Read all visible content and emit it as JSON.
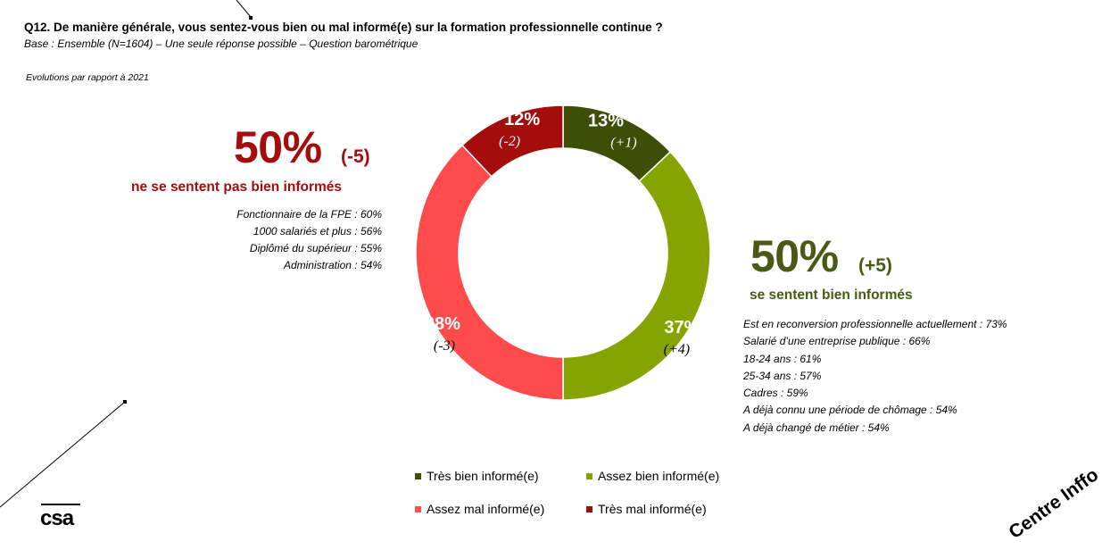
{
  "header": {
    "question": "Q12. De manière générale, vous sentez-vous bien ou mal informé(e) sur la formation professionnelle continue ?",
    "base": "Base : Ensemble (N=1604) – Une seule réponse possible – Question barométrique",
    "evolutions_note": "Evolutions par rapport à 2021"
  },
  "summary_negative": {
    "percent": "50%",
    "delta": "(-5)",
    "label": "ne se sentent pas bien informés",
    "details": [
      "Fonctionnaire de la FPE : 60%",
      "1000 salariés et plus : 56%",
      "Diplômé du supérieur : 55%",
      "Administration : 54%"
    ],
    "color": "#a50d0d"
  },
  "summary_positive": {
    "percent": "50%",
    "delta": "(+5)",
    "label": "se sentent bien informés",
    "details": [
      "Est en reconversion professionnelle actuellement : 73%",
      "Salarié d’une entreprise publique : 66%",
      "18-24 ans : 61%",
      "25-34 ans : 57%",
      "Cadres : 59%",
      "A déjà connu une période de chômage : 54%",
      "A déjà changé de métier : 54%"
    ],
    "color": "#4a5a14"
  },
  "chart_data": {
    "type": "pie",
    "variant": "donut",
    "title": "",
    "slices": [
      {
        "name": "Très bien informé(e)",
        "value": 13,
        "label": "13%",
        "delta": "(+1)",
        "color": "#3f4d06"
      },
      {
        "name": "Assez bien informé(e)",
        "value": 37,
        "label": "37%",
        "delta": "(+4)",
        "color": "#87a300"
      },
      {
        "name": "Assez mal informé(e)",
        "value": 38,
        "label": "38%",
        "delta": "(-3)",
        "color": "#ff4b4b"
      },
      {
        "name": "Très mal informé(e)",
        "value": 12,
        "label": "12%",
        "delta": "(-2)",
        "color": "#a50d0d"
      }
    ],
    "start_angle": "top",
    "direction": "clockwise",
    "legend_placement": "bottom"
  },
  "legend": [
    {
      "label": "Très bien informé(e)",
      "color": "#3f4d06"
    },
    {
      "label": "Assez bien informé(e)",
      "color": "#87a300"
    },
    {
      "label": "Assez mal informé(e)",
      "color": "#ff4b4b"
    },
    {
      "label": "Très mal informé(e)",
      "color": "#a50d0d"
    }
  ],
  "logo": {
    "text": "csa"
  },
  "watermark": {
    "text": "Centre Inffo"
  }
}
